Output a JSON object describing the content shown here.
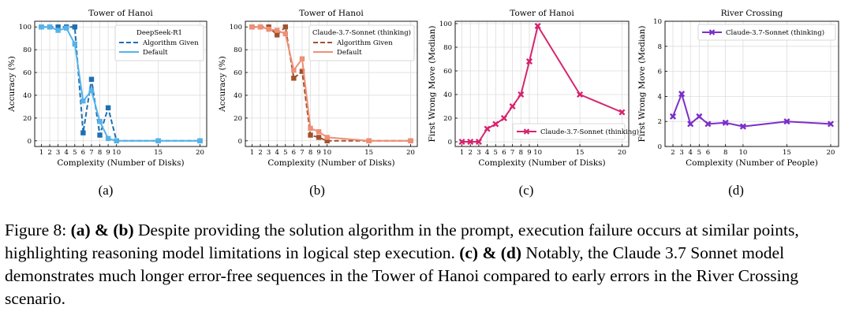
{
  "chart_data": [
    {
      "type": "line",
      "title": "Tower of Hanoi",
      "xlabel": "Complexity (Number of Disks)",
      "ylabel": "Accuracy (%)",
      "xticks": [
        1,
        2,
        3,
        4,
        5,
        6,
        7,
        8,
        9,
        10,
        15,
        20
      ],
      "yticks": [
        0,
        20,
        40,
        60,
        80,
        100
      ],
      "xlim": [
        0.2,
        20.8
      ],
      "ylim": [
        -5,
        105
      ],
      "legend_title": "DeepSeek-R1",
      "legend_position": "top-right",
      "grid": true,
      "series": [
        {
          "name": "Algorithm Given",
          "style": "dashed",
          "color": "#1f6fb4",
          "x": [
            1,
            2,
            3,
            4,
            5,
            6,
            7,
            8,
            9,
            10,
            15,
            20
          ],
          "y": [
            100,
            100,
            100,
            100,
            100,
            7,
            54,
            5,
            29,
            0,
            0,
            0
          ]
        },
        {
          "name": "Default",
          "style": "solid",
          "color": "#55b3e8",
          "x": [
            1,
            2,
            3,
            4,
            5,
            6,
            7,
            8,
            9,
            10,
            15,
            20
          ],
          "y": [
            100,
            100,
            97,
            99,
            85,
            35,
            44,
            17,
            2,
            0,
            0,
            0
          ]
        }
      ]
    },
    {
      "type": "line",
      "title": "Tower of Hanoi",
      "xlabel": "Complexity (Number of Disks)",
      "ylabel": "Accuracy (%)",
      "xticks": [
        1,
        2,
        3,
        4,
        5,
        6,
        7,
        8,
        9,
        10,
        15,
        20
      ],
      "yticks": [
        0,
        20,
        40,
        60,
        80,
        100
      ],
      "xlim": [
        0.2,
        20.8
      ],
      "ylim": [
        -5,
        105
      ],
      "legend_title": "Claude-3.7-Sonnet (thinking)",
      "legend_position": "top-right",
      "grid": true,
      "series": [
        {
          "name": "Algorithm Given",
          "style": "dashed",
          "color": "#a0522d",
          "x": [
            1,
            2,
            3,
            4,
            5,
            6,
            7,
            8,
            9,
            10,
            15,
            20
          ],
          "y": [
            100,
            100,
            100,
            93,
            100,
            55,
            61,
            5,
            3,
            0,
            0,
            0
          ]
        },
        {
          "name": "Default",
          "style": "solid",
          "color": "#ee8f76",
          "x": [
            1,
            2,
            3,
            4,
            5,
            6,
            7,
            8,
            9,
            10,
            15,
            20
          ],
          "y": [
            100,
            100,
            98,
            97,
            94,
            62,
            72,
            11,
            8,
            3,
            0,
            0
          ]
        }
      ]
    },
    {
      "type": "line",
      "title": "Tower of Hanoi",
      "xlabel": "Complexity (Number of Disks)",
      "ylabel": "First Wrong Move (Median)",
      "xticks": [
        1,
        2,
        3,
        4,
        5,
        6,
        7,
        8,
        9,
        10,
        15,
        20
      ],
      "yticks": [
        0,
        20,
        40,
        60,
        80,
        100
      ],
      "xlim": [
        0.2,
        20.8
      ],
      "ylim": [
        -4,
        102
      ],
      "legend_position": "bottom-right",
      "grid": true,
      "series": [
        {
          "name": "Claude-3.7-Sonnet (thinking)",
          "style": "solid",
          "color": "#d6246e",
          "x": [
            1,
            2,
            3,
            4,
            5,
            6,
            7,
            8,
            9,
            10,
            15,
            20
          ],
          "y": [
            0,
            0,
            0,
            11,
            15,
            20,
            30,
            40,
            68,
            98,
            40,
            25
          ]
        }
      ]
    },
    {
      "type": "line",
      "title": "River Crossing",
      "xlabel": "Complexity (Number of People)",
      "ylabel": "First Wrong Move (Median)",
      "xticks": [
        2,
        3,
        4,
        5,
        6,
        8,
        10,
        15,
        20
      ],
      "yticks": [
        0,
        2,
        4,
        6,
        8,
        10
      ],
      "xlim": [
        1.1,
        20.9
      ],
      "ylim": [
        0,
        10
      ],
      "legend_position": "top-right",
      "grid": true,
      "series": [
        {
          "name": "Claude-3.7-Sonnet (thinking)",
          "style": "solid",
          "color": "#7b2fc9",
          "x": [
            2,
            3,
            4,
            5,
            6,
            8,
            10,
            15,
            20
          ],
          "y": [
            2.4,
            4.2,
            1.8,
            2.4,
            1.8,
            1.9,
            1.6,
            2.0,
            1.8
          ]
        }
      ]
    }
  ],
  "sublabels": [
    "(a)",
    "(b)",
    "(c)",
    "(d)"
  ],
  "caption": {
    "fig": "Figure 8: ",
    "ab": "(a) & (b)",
    "t1": " Despite providing the solution algorithm in the prompt, execution failure occurs at similar points, highlighting reasoning model limitations in logical step execution. ",
    "cd": "(c) & (d)",
    "t2": " Notably, the Claude 3.7 Sonnet model demonstrates much longer error-free sequences in the Tower of Hanoi compared to early errors in the River Crossing scenario."
  }
}
